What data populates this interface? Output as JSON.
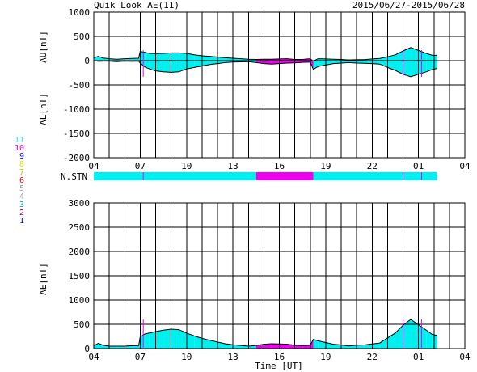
{
  "header": {
    "title": "Quik Look AE(11)",
    "date_range": "2015/06/27-2015/06/28"
  },
  "legend": {
    "labels": [
      "11",
      "10",
      "9",
      "8",
      "7",
      "6",
      "5",
      "4",
      "3",
      "2",
      "1"
    ],
    "colors": [
      "#40e0e0",
      "#e000e0",
      "#0000c0",
      "#e0e000",
      "#c0c000",
      "#e00000",
      "#a0a0a0",
      "#a0a0a0",
      "#00a0a0",
      "#a00060",
      "#0000e0"
    ]
  },
  "chart_data": [
    {
      "type": "area",
      "name": "upper",
      "ylabel_top": "AU[nT]",
      "ylabel_bottom": "AL[nT]",
      "ylim": [
        -2000,
        1000
      ],
      "yticks": [
        1000,
        500,
        0,
        -500,
        -1000,
        -1500,
        -2000
      ],
      "xlim_hours": [
        4,
        28
      ],
      "xticks": [
        "04",
        "07",
        "10",
        "13",
        "16",
        "19",
        "22",
        "01",
        "04"
      ],
      "series": [
        {
          "key": "AU",
          "x_hours": [
            4.0,
            4.3,
            4.6,
            5.0,
            5.5,
            6.0,
            6.5,
            6.9,
            7.0,
            7.3,
            7.6,
            8.0,
            8.5,
            9.0,
            9.5,
            10.0,
            10.5,
            11.0,
            11.5,
            12.0,
            12.5,
            13.0,
            13.5,
            14.0,
            14.5,
            15.0,
            15.5,
            16.0,
            16.5,
            17.0,
            17.5,
            18.0,
            18.2,
            18.5,
            19.0,
            19.5,
            20.0,
            20.5,
            21.0,
            21.5,
            22.0,
            22.5,
            23.0,
            23.5,
            24.0,
            24.5,
            25.0,
            25.5,
            25.9,
            26.2
          ],
          "values": [
            60,
            90,
            55,
            40,
            30,
            40,
            45,
            50,
            190,
            170,
            150,
            145,
            150,
            160,
            160,
            150,
            120,
            100,
            90,
            75,
            60,
            50,
            40,
            30,
            25,
            30,
            30,
            35,
            40,
            25,
            25,
            40,
            -10,
            40,
            35,
            30,
            25,
            15,
            20,
            20,
            35,
            45,
            80,
            120,
            200,
            270,
            210,
            150,
            110,
            110
          ]
        },
        {
          "key": "AL",
          "x_hours": [
            4.0,
            4.3,
            4.6,
            5.0,
            5.5,
            6.0,
            6.5,
            6.9,
            7.0,
            7.3,
            7.6,
            8.0,
            8.5,
            9.0,
            9.5,
            10.0,
            10.5,
            11.0,
            11.5,
            12.0,
            12.5,
            13.0,
            13.5,
            14.0,
            14.5,
            15.0,
            15.5,
            16.0,
            16.5,
            17.0,
            17.5,
            18.0,
            18.2,
            18.5,
            19.0,
            19.5,
            20.0,
            20.5,
            21.0,
            21.5,
            22.0,
            22.5,
            23.0,
            23.5,
            24.0,
            24.5,
            25.0,
            25.5,
            25.9,
            26.2
          ],
          "values": [
            0,
            -15,
            -10,
            -10,
            -20,
            -10,
            -15,
            -10,
            -50,
            -130,
            -170,
            -210,
            -230,
            -240,
            -230,
            -170,
            -140,
            -110,
            -80,
            -60,
            -40,
            -30,
            -25,
            -20,
            -40,
            -60,
            -70,
            -60,
            -50,
            -45,
            -35,
            -30,
            -180,
            -120,
            -90,
            -60,
            -50,
            -40,
            -50,
            -55,
            -60,
            -70,
            -140,
            -200,
            -280,
            -330,
            -280,
            -230,
            -180,
            -160
          ]
        }
      ]
    },
    {
      "type": "area",
      "name": "ae",
      "ylabel": "AE[nT]",
      "xlabel": "Time [UT]",
      "ylim": [
        0,
        3000
      ],
      "yticks": [
        3000,
        2500,
        2000,
        1500,
        1000,
        500,
        0
      ],
      "xlim_hours": [
        4,
        28
      ],
      "xticks": [
        "04",
        "07",
        "10",
        "13",
        "16",
        "19",
        "22",
        "01",
        "04"
      ],
      "series": [
        {
          "key": "AE",
          "x_hours": [
            4.0,
            4.3,
            4.6,
            5.0,
            5.5,
            6.0,
            6.5,
            6.9,
            7.0,
            7.3,
            7.6,
            8.0,
            8.5,
            9.0,
            9.5,
            10.0,
            10.5,
            11.0,
            11.5,
            12.0,
            12.5,
            13.0,
            13.5,
            14.0,
            14.5,
            15.0,
            15.5,
            16.0,
            16.5,
            17.0,
            17.5,
            18.0,
            18.2,
            18.5,
            19.0,
            19.5,
            20.0,
            20.5,
            21.0,
            21.5,
            22.0,
            22.5,
            23.0,
            23.5,
            24.0,
            24.5,
            25.0,
            25.5,
            25.9,
            26.2
          ],
          "values": [
            60,
            110,
            70,
            50,
            50,
            50,
            60,
            60,
            240,
            300,
            320,
            350,
            380,
            400,
            390,
            320,
            260,
            210,
            170,
            135,
            100,
            80,
            65,
            50,
            65,
            90,
            100,
            95,
            90,
            70,
            60,
            70,
            190,
            160,
            125,
            90,
            75,
            55,
            70,
            75,
            95,
            115,
            220,
            320,
            480,
            600,
            490,
            380,
            290,
            270
          ]
        }
      ]
    },
    {
      "type": "heatmap",
      "name": "station-count",
      "label": "N.STN",
      "xlim_hours": [
        4,
        28
      ],
      "segments": [
        {
          "start": 4.0,
          "end": 14.5,
          "count": 11
        },
        {
          "start": 14.5,
          "end": 18.2,
          "count": 10
        },
        {
          "start": 18.2,
          "end": 26.2,
          "count": 11
        }
      ],
      "marks_count_10": [
        7.2,
        24.0,
        25.2
      ]
    }
  ],
  "colors": {
    "fill_11": "#00f0f0",
    "fill_10": "#f000f0",
    "axis": "#000000",
    "line": "#000000"
  }
}
